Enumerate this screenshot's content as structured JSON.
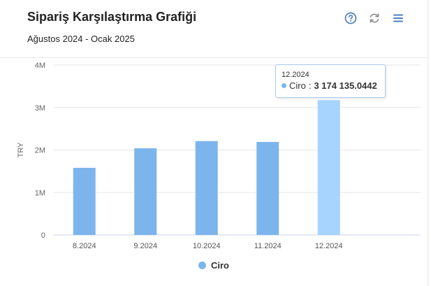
{
  "header": {
    "title": "Sipariş Karşılaştırma Grafiği",
    "subtitle": "Ağustos 2024 - Ocak 2025"
  },
  "toolbar": {
    "help_icon": "question-circle-icon",
    "refresh_icon": "refresh-icon",
    "menu_icon": "hamburger-menu-icon"
  },
  "colors": {
    "bar": "#7cb5ec",
    "bar_highlight": "#a6d4ff",
    "accent": "#4a7fc1"
  },
  "chart_data": {
    "type": "bar",
    "title": "Sipariş Karşılaştırma Grafiği",
    "subtitle": "Ağustos 2024 - Ocak 2025",
    "categories": [
      "8.2024",
      "9.2024",
      "10.2024",
      "11.2024",
      "12.2024",
      ""
    ],
    "series": [
      {
        "name": "Ciro",
        "values": [
          1580000,
          2040000,
          2210000,
          2190000,
          3174135.0442,
          null
        ]
      }
    ],
    "ylabel": "TRY",
    "xlabel": "",
    "ylim": [
      0,
      4000000
    ],
    "yticks": [
      0,
      1000000,
      2000000,
      3000000,
      4000000
    ],
    "ytick_labels": [
      "0",
      "1M",
      "2M",
      "3M",
      "4M"
    ],
    "grid": true,
    "legend": "bottom-center",
    "highlighted_index": 4
  },
  "tooltip": {
    "category": "12.2024",
    "series": "Ciro",
    "value": "3 174 135.0442"
  }
}
